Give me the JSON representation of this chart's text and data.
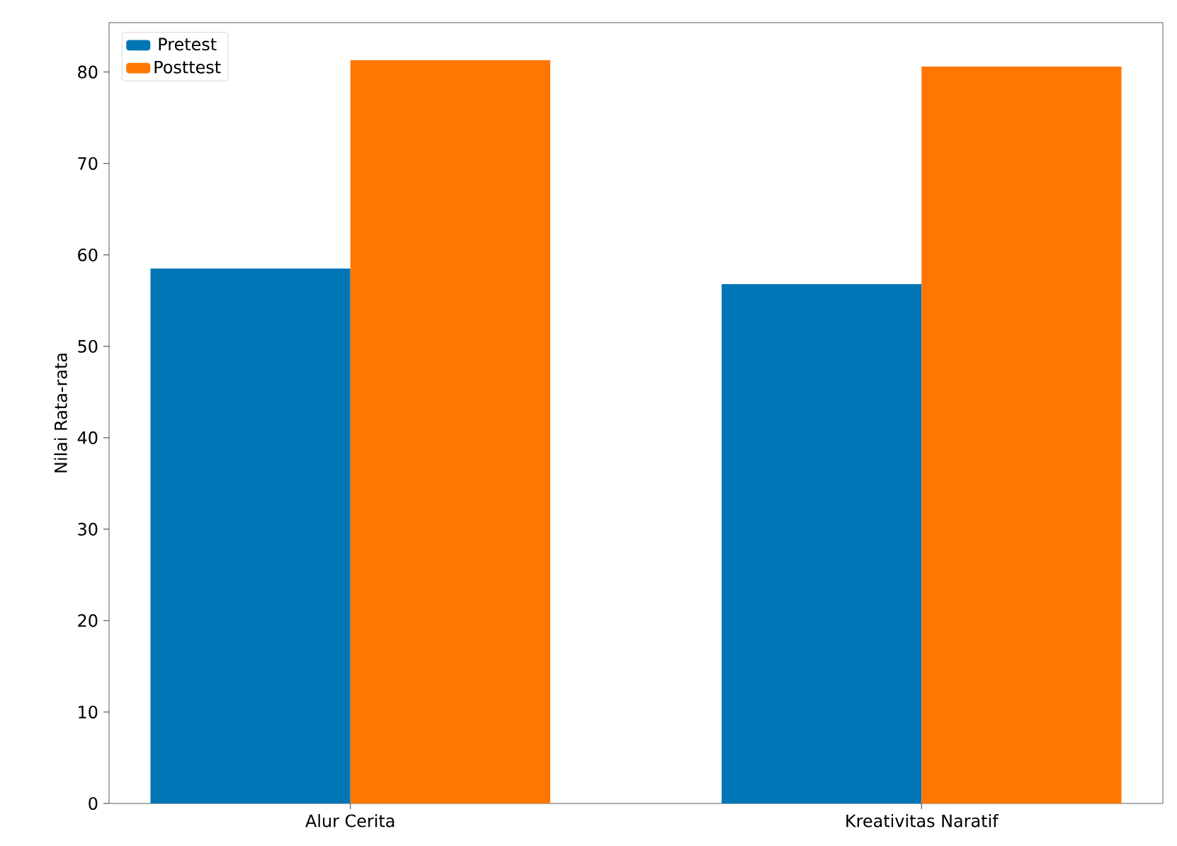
{
  "chart_data": {
    "type": "bar",
    "ylabel": "Nilai Rata-rata",
    "categories": [
      "Alur Cerita",
      "Kreativitas Naratif"
    ],
    "series": [
      {
        "name": "Pretest",
        "color": "#0076b6",
        "values": [
          58.5,
          56.8
        ]
      },
      {
        "name": "Posttest",
        "color": "#ff7700",
        "values": [
          81.3,
          80.6
        ]
      }
    ],
    "ylim": [
      0,
      85.4
    ],
    "yticks": [
      0,
      10,
      20,
      30,
      40,
      50,
      60,
      70,
      80
    ],
    "legend": "top left"
  }
}
